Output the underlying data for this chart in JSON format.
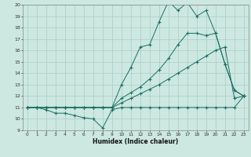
{
  "xlabel": "Humidex (Indice chaleur)",
  "bg_color": "#cce8e0",
  "grid_color": "#aaccc4",
  "line_color": "#1a6e64",
  "xlim": [
    -0.5,
    23.5
  ],
  "ylim": [
    9,
    20
  ],
  "yticks": [
    9,
    10,
    11,
    12,
    13,
    14,
    15,
    16,
    17,
    18,
    19,
    20
  ],
  "xticks": [
    0,
    1,
    2,
    3,
    4,
    5,
    6,
    7,
    8,
    9,
    10,
    11,
    12,
    13,
    14,
    15,
    16,
    17,
    18,
    19,
    20,
    21,
    22,
    23
  ],
  "series1_x": [
    0,
    1,
    2,
    3,
    4,
    5,
    6,
    7,
    8,
    9,
    10,
    11,
    12,
    13,
    14,
    15,
    16,
    17,
    18,
    19,
    20,
    21,
    22,
    23
  ],
  "series1_y": [
    11,
    11,
    10.8,
    10.5,
    10.5,
    10.3,
    10.1,
    10.0,
    9.2,
    10.8,
    11.0,
    11.0,
    11.0,
    11.0,
    11.0,
    11.0,
    11.0,
    11.0,
    11.0,
    11.0,
    11.0,
    11.0,
    11.0,
    12.0
  ],
  "series2_x": [
    0,
    1,
    2,
    3,
    4,
    5,
    6,
    7,
    8,
    9,
    10,
    11,
    12,
    13,
    14,
    15,
    16,
    17,
    18,
    19,
    20,
    21,
    22,
    23
  ],
  "series2_y": [
    11.0,
    11.0,
    11.0,
    11.0,
    11.0,
    11.0,
    11.0,
    11.0,
    11.0,
    11.0,
    11.4,
    11.8,
    12.2,
    12.6,
    13.0,
    13.5,
    14.0,
    14.5,
    15.0,
    15.5,
    16.0,
    16.3,
    11.8,
    12.0
  ],
  "series3_x": [
    0,
    1,
    2,
    3,
    4,
    5,
    6,
    7,
    8,
    9,
    10,
    11,
    12,
    13,
    14,
    15,
    16,
    17,
    18,
    19,
    20,
    21,
    22,
    23
  ],
  "series3_y": [
    11.0,
    11.0,
    11.0,
    11.0,
    11.0,
    11.0,
    11.0,
    11.0,
    11.0,
    11.0,
    11.8,
    12.3,
    12.8,
    13.5,
    14.3,
    15.3,
    16.5,
    17.5,
    17.5,
    17.3,
    17.5,
    14.8,
    12.5,
    12.0
  ],
  "series4_x": [
    0,
    1,
    2,
    3,
    4,
    5,
    6,
    7,
    8,
    9,
    10,
    11,
    12,
    13,
    14,
    15,
    16,
    17,
    18,
    19,
    20,
    21,
    22,
    23
  ],
  "series4_y": [
    11.0,
    11.0,
    11.0,
    11.0,
    11.0,
    11.0,
    11.0,
    11.0,
    11.0,
    11.0,
    13.0,
    14.5,
    16.3,
    16.5,
    18.5,
    20.3,
    19.5,
    20.2,
    19.0,
    19.5,
    17.5,
    14.8,
    12.5,
    12.0
  ]
}
